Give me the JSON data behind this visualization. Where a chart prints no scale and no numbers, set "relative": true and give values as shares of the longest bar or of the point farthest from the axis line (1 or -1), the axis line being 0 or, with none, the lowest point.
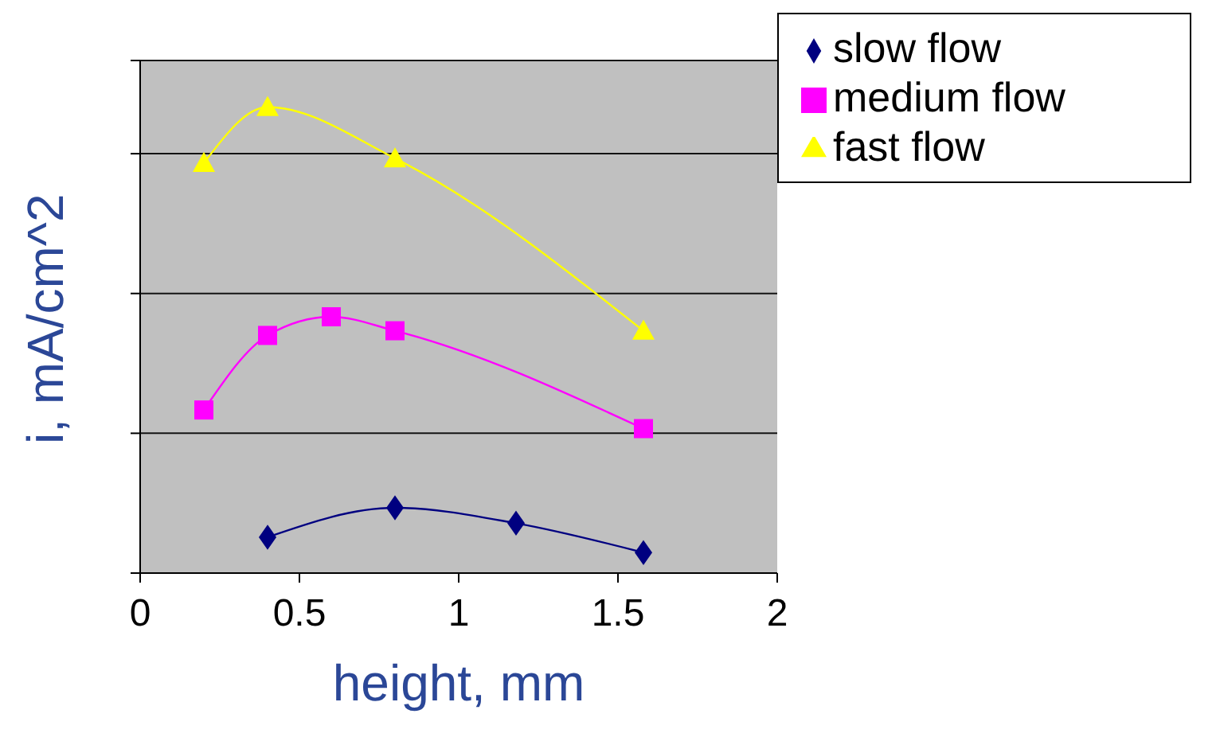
{
  "chart_data": {
    "type": "line",
    "xlabel": "height, mm",
    "ylabel": "i, mA/cm^2",
    "relative": true,
    "xlim": [
      0,
      2
    ],
    "xticks": [
      0,
      0.5,
      1,
      1.5,
      2
    ],
    "grid": "y",
    "legend": "top right",
    "series": [
      {
        "name": "slow flow",
        "color": "#000080",
        "marker": "diamond",
        "x": [
          0.4,
          0.8,
          1.18,
          1.58
        ],
        "values": [
          0.077,
          0.14,
          0.107,
          0.044
        ]
      },
      {
        "name": "medium flow",
        "color": "#ff00ff",
        "marker": "square",
        "x": [
          0.2,
          0.4,
          0.6,
          0.8,
          1.58
        ],
        "values": [
          0.35,
          0.51,
          0.55,
          0.52,
          0.31
        ]
      },
      {
        "name": "fast flow",
        "color": "#ffff00",
        "marker": "triangle",
        "x": [
          0.2,
          0.4,
          0.8,
          1.58
        ],
        "values": [
          0.88,
          1,
          0.89,
          0.52
        ]
      }
    ]
  }
}
